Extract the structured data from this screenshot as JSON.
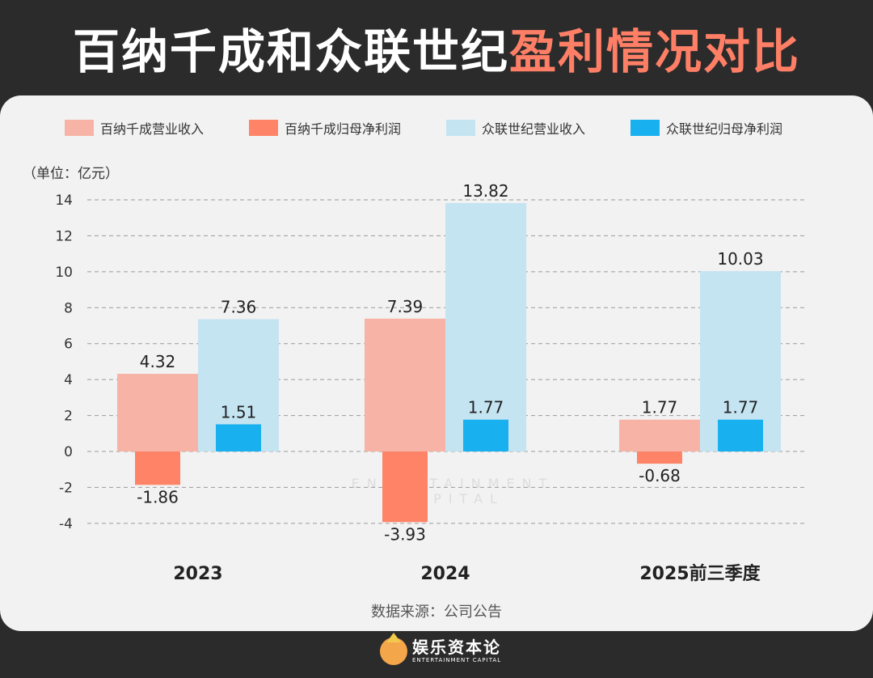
{
  "title": {
    "part1": "百纳千成和众联世纪",
    "part2": "盈利情况对比"
  },
  "unit_label": "（单位：亿元）",
  "source": "数据来源：公司公告",
  "watermark": "ENTERTAINMENT CAPITAL",
  "logo": {
    "name": "娱乐资本论",
    "sub": "ENTERTAINMENT CAPITAL"
  },
  "colors": {
    "bainaqiancheng_revenue": "#f7b4a6",
    "bainaqiancheng_profit": "#ff8467",
    "zhonglian_revenue": "#c4e4f2",
    "zhonglian_profit": "#18b0ef",
    "highlight": "#ff7f66"
  },
  "chart_data": {
    "type": "bar",
    "categories": [
      "2023",
      "2024",
      "2025前三季度"
    ],
    "ylim": [
      -4,
      14
    ],
    "yticks": [
      14,
      12,
      10,
      8,
      6,
      4,
      2,
      0,
      -2,
      -4
    ],
    "grid": true,
    "legend": "top",
    "series": [
      {
        "name": "百纳千成营业收入",
        "values": [
          4.32,
          7.39,
          1.77
        ],
        "labels": [
          "4.32",
          "7.39",
          "1.77"
        ]
      },
      {
        "name": "百纳千成归母净利润",
        "values": [
          -1.86,
          -3.93,
          -0.68
        ],
        "labels": [
          "-1.86",
          "-3.93",
          "-0.68"
        ]
      },
      {
        "name": "众联世纪营业收入",
        "values": [
          7.36,
          13.82,
          10.03
        ],
        "labels": [
          "7.36",
          "13.82",
          "10.03"
        ]
      },
      {
        "name": "众联世纪归母净利润",
        "values": [
          1.51,
          1.77,
          1.77
        ],
        "labels": [
          "1.51",
          "1.77",
          "1.77"
        ]
      }
    ]
  }
}
